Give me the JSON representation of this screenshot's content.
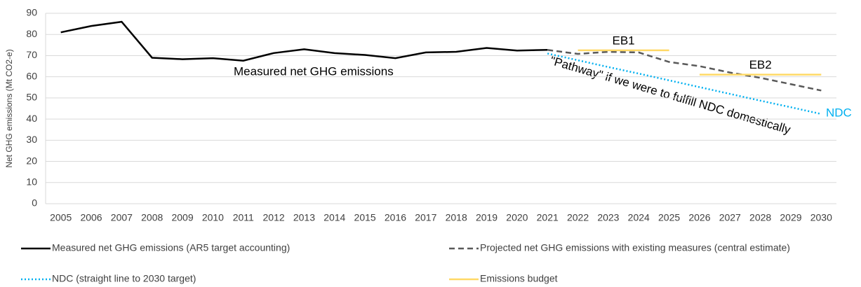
{
  "chart_data": {
    "type": "line",
    "y_label": "Net GHG emissions (Mt CO2-e)",
    "x": [
      2005,
      2006,
      2007,
      2008,
      2009,
      2010,
      2011,
      2012,
      2013,
      2014,
      2015,
      2016,
      2017,
      2018,
      2019,
      2020,
      2021,
      2022,
      2023,
      2024,
      2025,
      2026,
      2027,
      2028,
      2029,
      2030
    ],
    "xlim": [
      2004.5,
      2030.5
    ],
    "xticks": [
      2005,
      2006,
      2007,
      2008,
      2009,
      2010,
      2011,
      2012,
      2013,
      2014,
      2015,
      2016,
      2017,
      2018,
      2019,
      2020,
      2021,
      2022,
      2023,
      2024,
      2025,
      2026,
      2027,
      2028,
      2029,
      2030
    ],
    "ylim": [
      0,
      90
    ],
    "yticks": [
      0,
      10,
      20,
      30,
      40,
      50,
      60,
      70,
      80,
      90
    ],
    "grid": true,
    "legend": "bottom",
    "series": [
      {
        "name": "Measured net GHG emissions (AR5 target accounting)",
        "color": "#000000",
        "style": "solid",
        "values": [
          81,
          84,
          86,
          69,
          68.3,
          68.8,
          67.6,
          71.2,
          73,
          71.2,
          70.3,
          68.8,
          71.5,
          71.8,
          73.6,
          72.4,
          72.7,
          null,
          null,
          null,
          null,
          null,
          null,
          null,
          null,
          null
        ]
      },
      {
        "name": "Projected net GHG emissions with existing measures (central estimate)",
        "color": "#595959",
        "style": "dashed",
        "values": [
          null,
          null,
          null,
          null,
          null,
          null,
          null,
          null,
          null,
          null,
          null,
          null,
          null,
          null,
          null,
          null,
          72.7,
          70.8,
          71.8,
          71.5,
          67,
          65,
          62,
          59.5,
          56.5,
          53.5
        ]
      },
      {
        "name": "NDC (straight line to 2030 target)",
        "color": "#00b0f0",
        "style": "dotted",
        "values": [
          null,
          null,
          null,
          null,
          null,
          null,
          null,
          null,
          null,
          null,
          null,
          null,
          null,
          null,
          null,
          null,
          71,
          67.8,
          64.6,
          61.5,
          58.3,
          55.1,
          51.9,
          48.7,
          45.6,
          42.4
        ]
      },
      {
        "name": "Emissions budget",
        "color": "#ffd966",
        "style": "solid",
        "segments": [
          {
            "label": "EB1",
            "x": [
              2022,
              2025
            ],
            "value": 72.5
          },
          {
            "label": "EB2",
            "x": [
              2026,
              2030
            ],
            "value": 61
          }
        ]
      }
    ],
    "annotations": [
      "Measured net GHG emissions",
      "\"Pathway\" if we were to fulfill NDC domestically",
      "NDC"
    ]
  }
}
